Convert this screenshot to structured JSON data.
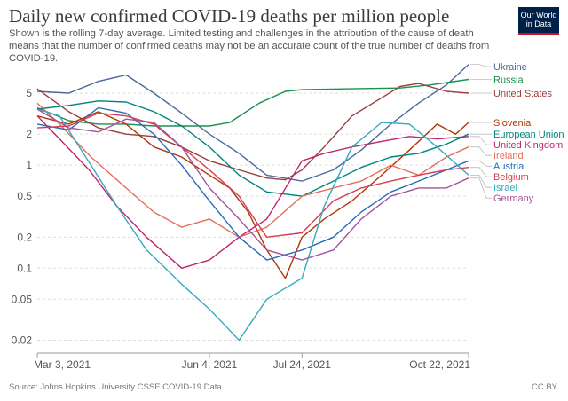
{
  "title": "Daily new confirmed COVID-19 deaths per million people",
  "subtitle": "Shown is the rolling 7-day average. Limited testing and challenges in the attribution of the cause of death means that the number of confirmed deaths may not be an accurate count of the true number of deaths from COVID-19.",
  "logo": {
    "line1": "Our World",
    "line2": "in Data",
    "colors": {
      "bg": "#002147",
      "accent": "#c8102e"
    }
  },
  "footer": {
    "source": "Source: Johns Hopkins University CSSE COVID-19 Data",
    "license": "CC BY"
  },
  "chart_data": {
    "type": "line",
    "y_scale": "log",
    "ylim": [
      0.015,
      10
    ],
    "y_ticks": [
      0.02,
      0.05,
      0.1,
      0.2,
      0.5,
      1,
      2,
      5
    ],
    "y_tick_labels": [
      "0.02",
      "0.05",
      "0.1",
      "0.2",
      "0.5",
      "1",
      "2",
      "5"
    ],
    "x_range": [
      "2021-03-03",
      "2021-10-22"
    ],
    "x_ticks": [
      "2021-03-03",
      "2021-06-04",
      "2021-07-24",
      "2021-10-22"
    ],
    "x_tick_labels": [
      "Mar 3, 2021",
      "Jun 4, 2021",
      "Jul 24, 2021",
      "Oct 22, 2021"
    ],
    "grid": "horizontal dotted",
    "legend": "right",
    "series": [
      {
        "name": "Ukraine",
        "color": "#4c6a9c",
        "points": [
          [
            "2021-03-03",
            5.2
          ],
          [
            "2021-03-20",
            5.0
          ],
          [
            "2021-04-05",
            6.5
          ],
          [
            "2021-04-20",
            7.5
          ],
          [
            "2021-05-05",
            5.0
          ],
          [
            "2021-05-20",
            3.2
          ],
          [
            "2021-06-04",
            2.0
          ],
          [
            "2021-06-20",
            1.3
          ],
          [
            "2021-07-05",
            0.8
          ],
          [
            "2021-07-24",
            0.7
          ],
          [
            "2021-08-10",
            0.9
          ],
          [
            "2021-08-25",
            1.4
          ],
          [
            "2021-09-10",
            2.5
          ],
          [
            "2021-09-25",
            4.0
          ],
          [
            "2021-10-10",
            6.0
          ],
          [
            "2021-10-22",
            9.5
          ]
        ]
      },
      {
        "name": "Russia",
        "color": "#18924d",
        "points": [
          [
            "2021-03-03",
            3.6
          ],
          [
            "2021-03-20",
            2.7
          ],
          [
            "2021-04-05",
            2.5
          ],
          [
            "2021-04-20",
            2.5
          ],
          [
            "2021-05-05",
            2.4
          ],
          [
            "2021-05-20",
            2.4
          ],
          [
            "2021-06-04",
            2.4
          ],
          [
            "2021-06-15",
            2.6
          ],
          [
            "2021-07-01",
            4.0
          ],
          [
            "2021-07-15",
            5.2
          ],
          [
            "2021-07-24",
            5.4
          ],
          [
            "2021-08-15",
            5.5
          ],
          [
            "2021-09-15",
            5.6
          ],
          [
            "2021-10-01",
            6.0
          ],
          [
            "2021-10-22",
            6.8
          ]
        ]
      },
      {
        "name": "United States",
        "color": "#9a3e3e",
        "points": [
          [
            "2021-03-03",
            5.5
          ],
          [
            "2021-03-20",
            3.3
          ],
          [
            "2021-04-05",
            2.3
          ],
          [
            "2021-04-20",
            2.0
          ],
          [
            "2021-05-05",
            1.9
          ],
          [
            "2021-05-20",
            1.5
          ],
          [
            "2021-06-04",
            1.1
          ],
          [
            "2021-06-20",
            0.9
          ],
          [
            "2021-07-05",
            0.75
          ],
          [
            "2021-07-15",
            0.72
          ],
          [
            "2021-07-24",
            0.9
          ],
          [
            "2021-08-05",
            1.5
          ],
          [
            "2021-08-20",
            3.0
          ],
          [
            "2021-09-05",
            4.5
          ],
          [
            "2021-09-15",
            5.8
          ],
          [
            "2021-09-25",
            6.2
          ],
          [
            "2021-10-10",
            5.2
          ],
          [
            "2021-10-22",
            5.0
          ]
        ]
      },
      {
        "name": "Slovenia",
        "color": "#b13507",
        "points": [
          [
            "2021-03-03",
            3.0
          ],
          [
            "2021-03-20",
            2.5
          ],
          [
            "2021-04-05",
            3.3
          ],
          [
            "2021-04-20",
            2.5
          ],
          [
            "2021-05-05",
            1.5
          ],
          [
            "2021-05-20",
            1.2
          ],
          [
            "2021-06-04",
            0.8
          ],
          [
            "2021-06-15",
            0.6
          ],
          [
            "2021-06-25",
            0.35
          ],
          [
            "2021-07-05",
            0.15
          ],
          [
            "2021-07-15",
            0.08
          ],
          [
            "2021-07-24",
            0.2
          ],
          [
            "2021-08-05",
            0.3
          ],
          [
            "2021-08-20",
            0.45
          ],
          [
            "2021-09-05",
            0.8
          ],
          [
            "2021-09-20",
            1.4
          ],
          [
            "2021-10-05",
            2.5
          ],
          [
            "2021-10-15",
            2.0
          ],
          [
            "2021-10-22",
            2.6
          ]
        ]
      },
      {
        "name": "European Union",
        "color": "#00847e",
        "points": [
          [
            "2021-03-03",
            3.5
          ],
          [
            "2021-03-20",
            3.8
          ],
          [
            "2021-04-05",
            4.2
          ],
          [
            "2021-04-20",
            4.1
          ],
          [
            "2021-05-05",
            3.3
          ],
          [
            "2021-05-20",
            2.4
          ],
          [
            "2021-06-04",
            1.5
          ],
          [
            "2021-06-20",
            0.8
          ],
          [
            "2021-07-05",
            0.55
          ],
          [
            "2021-07-24",
            0.5
          ],
          [
            "2021-08-10",
            0.7
          ],
          [
            "2021-08-25",
            0.95
          ],
          [
            "2021-09-10",
            1.2
          ],
          [
            "2021-09-25",
            1.3
          ],
          [
            "2021-10-10",
            1.6
          ],
          [
            "2021-10-22",
            2.0
          ]
        ]
      },
      {
        "name": "United Kingdom",
        "color": "#c1246e",
        "points": [
          [
            "2021-03-03",
            3.0
          ],
          [
            "2021-03-15",
            1.8
          ],
          [
            "2021-03-31",
            0.9
          ],
          [
            "2021-04-15",
            0.4
          ],
          [
            "2021-05-01",
            0.2
          ],
          [
            "2021-05-20",
            0.1
          ],
          [
            "2021-06-04",
            0.12
          ],
          [
            "2021-06-20",
            0.2
          ],
          [
            "2021-07-05",
            0.3
          ],
          [
            "2021-07-24",
            1.1
          ],
          [
            "2021-08-05",
            1.3
          ],
          [
            "2021-08-20",
            1.5
          ],
          [
            "2021-09-05",
            1.7
          ],
          [
            "2021-09-20",
            1.9
          ],
          [
            "2021-10-05",
            1.8
          ],
          [
            "2021-10-22",
            1.9
          ]
        ]
      },
      {
        "name": "Ireland",
        "color": "#e56e5a",
        "points": [
          [
            "2021-03-03",
            4.0
          ],
          [
            "2021-03-15",
            2.5
          ],
          [
            "2021-04-01",
            1.2
          ],
          [
            "2021-04-20",
            0.6
          ],
          [
            "2021-05-05",
            0.35
          ],
          [
            "2021-05-20",
            0.25
          ],
          [
            "2021-06-04",
            0.3
          ],
          [
            "2021-06-20",
            0.2
          ],
          [
            "2021-07-05",
            0.25
          ],
          [
            "2021-07-24",
            0.5
          ],
          [
            "2021-08-10",
            0.6
          ],
          [
            "2021-08-25",
            0.7
          ],
          [
            "2021-09-10",
            1.0
          ],
          [
            "2021-09-25",
            0.8
          ],
          [
            "2021-10-10",
            1.2
          ],
          [
            "2021-10-22",
            1.5
          ]
        ]
      },
      {
        "name": "Austria",
        "color": "#286bbb",
        "points": [
          [
            "2021-03-03",
            2.5
          ],
          [
            "2021-03-20",
            2.2
          ],
          [
            "2021-04-05",
            3.6
          ],
          [
            "2021-04-20",
            3.2
          ],
          [
            "2021-05-05",
            2.0
          ],
          [
            "2021-05-20",
            1.0
          ],
          [
            "2021-06-04",
            0.45
          ],
          [
            "2021-06-20",
            0.2
          ],
          [
            "2021-07-05",
            0.12
          ],
          [
            "2021-07-24",
            0.15
          ],
          [
            "2021-08-10",
            0.2
          ],
          [
            "2021-08-25",
            0.35
          ],
          [
            "2021-09-10",
            0.55
          ],
          [
            "2021-09-25",
            0.7
          ],
          [
            "2021-10-10",
            0.9
          ],
          [
            "2021-10-22",
            1.1
          ]
        ]
      },
      {
        "name": "Belgium",
        "color": "#d73c50",
        "points": [
          [
            "2021-03-03",
            2.3
          ],
          [
            "2021-03-20",
            2.4
          ],
          [
            "2021-04-05",
            3.2
          ],
          [
            "2021-04-20",
            3.0
          ],
          [
            "2021-05-05",
            2.5
          ],
          [
            "2021-05-20",
            1.5
          ],
          [
            "2021-06-04",
            0.9
          ],
          [
            "2021-06-20",
            0.5
          ],
          [
            "2021-07-05",
            0.2
          ],
          [
            "2021-07-24",
            0.22
          ],
          [
            "2021-08-10",
            0.45
          ],
          [
            "2021-08-25",
            0.6
          ],
          [
            "2021-09-10",
            0.7
          ],
          [
            "2021-09-25",
            0.8
          ],
          [
            "2021-10-10",
            0.9
          ],
          [
            "2021-10-22",
            0.95
          ]
        ]
      },
      {
        "name": "Israel",
        "color": "#38aaba",
        "points": [
          [
            "2021-03-03",
            3.5
          ],
          [
            "2021-03-15",
            3.0
          ],
          [
            "2021-04-01",
            1.0
          ],
          [
            "2021-04-15",
            0.4
          ],
          [
            "2021-05-01",
            0.15
          ],
          [
            "2021-05-20",
            0.07
          ],
          [
            "2021-06-04",
            0.04
          ],
          [
            "2021-06-20",
            0.02
          ],
          [
            "2021-07-05",
            0.05
          ],
          [
            "2021-07-24",
            0.08
          ],
          [
            "2021-08-05",
            0.4
          ],
          [
            "2021-08-20",
            1.5
          ],
          [
            "2021-09-05",
            2.6
          ],
          [
            "2021-09-20",
            2.5
          ],
          [
            "2021-10-05",
            1.5
          ],
          [
            "2021-10-22",
            0.8
          ]
        ]
      },
      {
        "name": "Germany",
        "color": "#a2559c",
        "points": [
          [
            "2021-03-03",
            3.5
          ],
          [
            "2021-03-20",
            2.3
          ],
          [
            "2021-04-05",
            2.1
          ],
          [
            "2021-04-20",
            2.8
          ],
          [
            "2021-05-05",
            2.6
          ],
          [
            "2021-05-20",
            1.5
          ],
          [
            "2021-06-04",
            0.6
          ],
          [
            "2021-06-20",
            0.3
          ],
          [
            "2021-07-05",
            0.15
          ],
          [
            "2021-07-24",
            0.12
          ],
          [
            "2021-08-10",
            0.15
          ],
          [
            "2021-08-25",
            0.3
          ],
          [
            "2021-09-10",
            0.5
          ],
          [
            "2021-09-25",
            0.6
          ],
          [
            "2021-10-10",
            0.6
          ],
          [
            "2021-10-22",
            0.75
          ]
        ]
      }
    ],
    "legend_order": [
      "Ukraine",
      "Russia",
      "United States",
      "Slovenia",
      "European Union",
      "United Kingdom",
      "Ireland",
      "Austria",
      "Belgium",
      "Israel",
      "Germany"
    ]
  }
}
